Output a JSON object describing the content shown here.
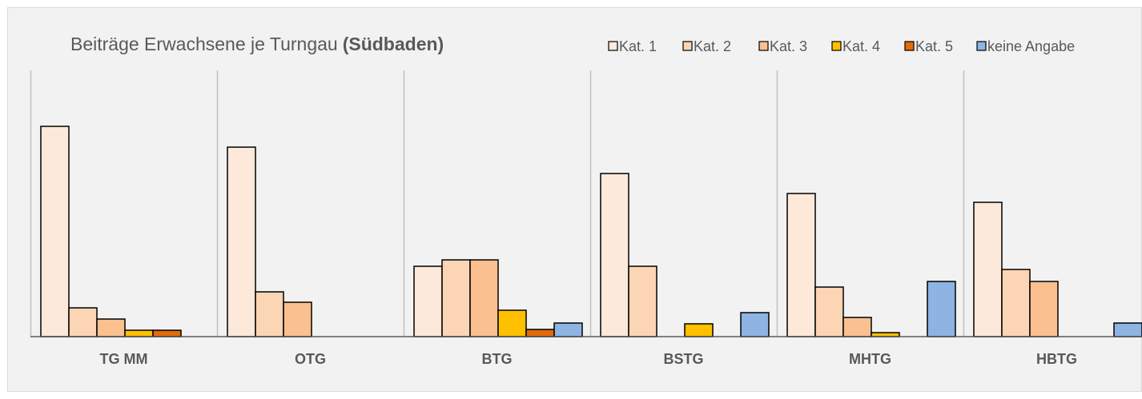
{
  "chart_data": {
    "type": "bar",
    "title": "Beiträge Erwachsene je Turngau",
    "title_emphasis": "(Südbaden)",
    "categories": [
      "TG MM",
      "OTG",
      "BTG",
      "BSTG",
      "MHTG",
      "HBTG"
    ],
    "series": [
      {
        "name": "Kat. 1",
        "color": "#fde9d9",
        "values": [
          263,
          237,
          88,
          204,
          179,
          168
        ]
      },
      {
        "name": "Kat. 2",
        "color": "#fcd5b5",
        "values": [
          36,
          56,
          96,
          88,
          62,
          84
        ]
      },
      {
        "name": "Kat. 3",
        "color": "#fac090",
        "values": [
          22,
          43,
          96,
          0,
          24,
          69
        ]
      },
      {
        "name": "Kat. 4",
        "color": "#ffc000",
        "values": [
          8,
          0,
          33,
          16,
          5,
          0
        ]
      },
      {
        "name": "Kat. 5",
        "color": "#e26b0a",
        "values": [
          8,
          0,
          9,
          0,
          0,
          0
        ]
      },
      {
        "name": "keine Angabe",
        "color": "#8db4e2",
        "values": [
          0,
          0,
          17,
          30,
          69,
          17
        ]
      }
    ],
    "ylim": [
      0,
      350
    ],
    "legend": "top-right"
  }
}
